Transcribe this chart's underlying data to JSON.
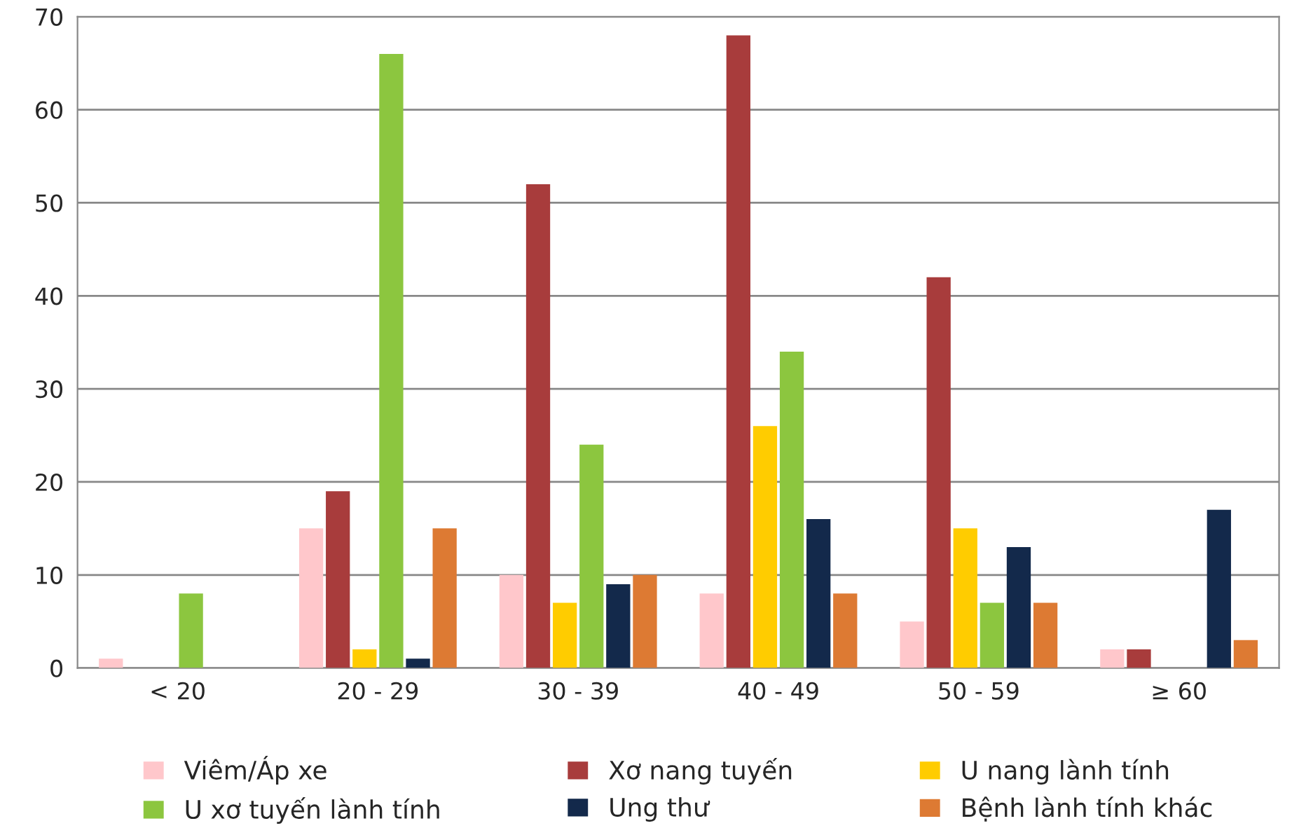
{
  "chart_data": {
    "type": "bar",
    "categories": [
      "< 20",
      "20 - 29",
      "30 - 39",
      "40 - 49",
      "50 - 59",
      "≥ 60"
    ],
    "series": [
      {
        "name": "Viêm/Áp xe",
        "color": "#ffc7cb",
        "values": [
          1,
          15,
          10,
          8,
          5,
          2
        ]
      },
      {
        "name": "Xơ nang tuyến",
        "color": "#a83c3c",
        "values": [
          0,
          19,
          52,
          68,
          42,
          2
        ]
      },
      {
        "name": "U nang lành tính",
        "color": "#ffcc00",
        "values": [
          0,
          2,
          7,
          26,
          15,
          0
        ]
      },
      {
        "name": "U xơ tuyến lành tính",
        "color": "#8cc63f",
        "values": [
          8,
          66,
          24,
          34,
          7,
          0
        ]
      },
      {
        "name": "Ung thư",
        "color": "#13294b",
        "values": [
          0,
          1,
          9,
          16,
          13,
          17
        ]
      },
      {
        "name": "Bệnh lành tính khác",
        "color": "#dd7a33",
        "values": [
          0,
          15,
          10,
          8,
          7,
          3
        ]
      }
    ],
    "ylim": [
      0,
      70
    ],
    "yticks": [
      0,
      10,
      20,
      30,
      40,
      50,
      60,
      70
    ],
    "grid": "y",
    "legend": "bottom"
  }
}
